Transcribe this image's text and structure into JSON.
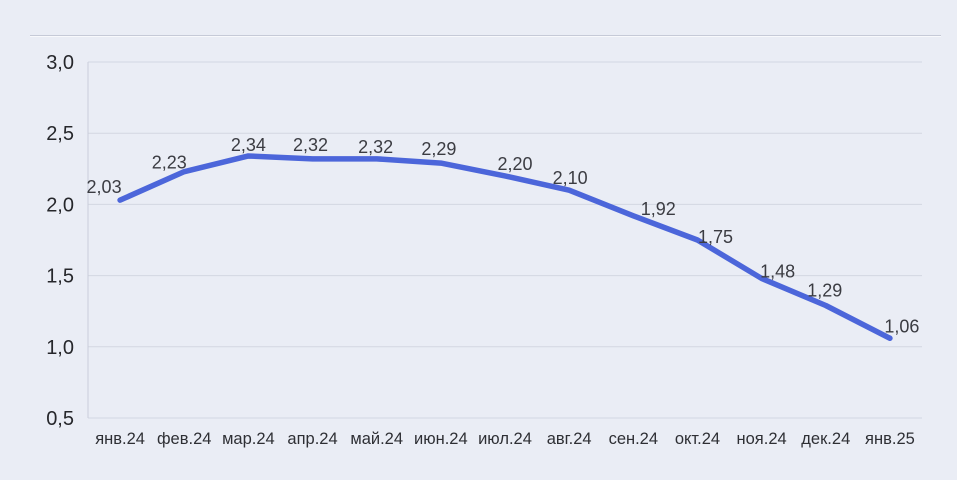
{
  "chart_data": {
    "type": "line",
    "title": "",
    "xlabel": "",
    "ylabel": "",
    "categories": [
      "янв.24",
      "фев.24",
      "мар.24",
      "апр.24",
      "май.24",
      "июн.24",
      "июл.24",
      "авг.24",
      "сен.24",
      "окт.24",
      "ноя.24",
      "дек.24",
      "янв.25"
    ],
    "series": [
      {
        "name": "value",
        "values": [
          2.03,
          2.23,
          2.34,
          2.32,
          2.32,
          2.29,
          2.2,
          2.1,
          1.92,
          1.75,
          1.48,
          1.29,
          1.06
        ],
        "point_labels": [
          "2,03",
          "2,23",
          "2,34",
          "2,32",
          "2,32",
          "2,29",
          "2,20",
          "2,10",
          "1,92",
          "1,75",
          "1,48",
          "1,29",
          "1,06"
        ]
      }
    ],
    "y_ticks": [
      {
        "value": 3.0,
        "label": "3,0"
      },
      {
        "value": 2.5,
        "label": "2,5"
      },
      {
        "value": 2.0,
        "label": "2,0"
      },
      {
        "value": 1.5,
        "label": "1,5"
      },
      {
        "value": 1.0,
        "label": "1,0"
      },
      {
        "value": 0.5,
        "label": "0,5"
      }
    ],
    "ylim": [
      0.5,
      3.0
    ],
    "grid": true,
    "legend": "none",
    "colors": {
      "line": "#4c66da",
      "background": "#eaedf5",
      "grid": "#d3d7e2",
      "axis": "#c9cdda",
      "y_tick_text": "#26272b",
      "x_tick_text": "#2e2f34",
      "point_label_text": "#3b3c42",
      "divider": "#c6cad7"
    }
  }
}
